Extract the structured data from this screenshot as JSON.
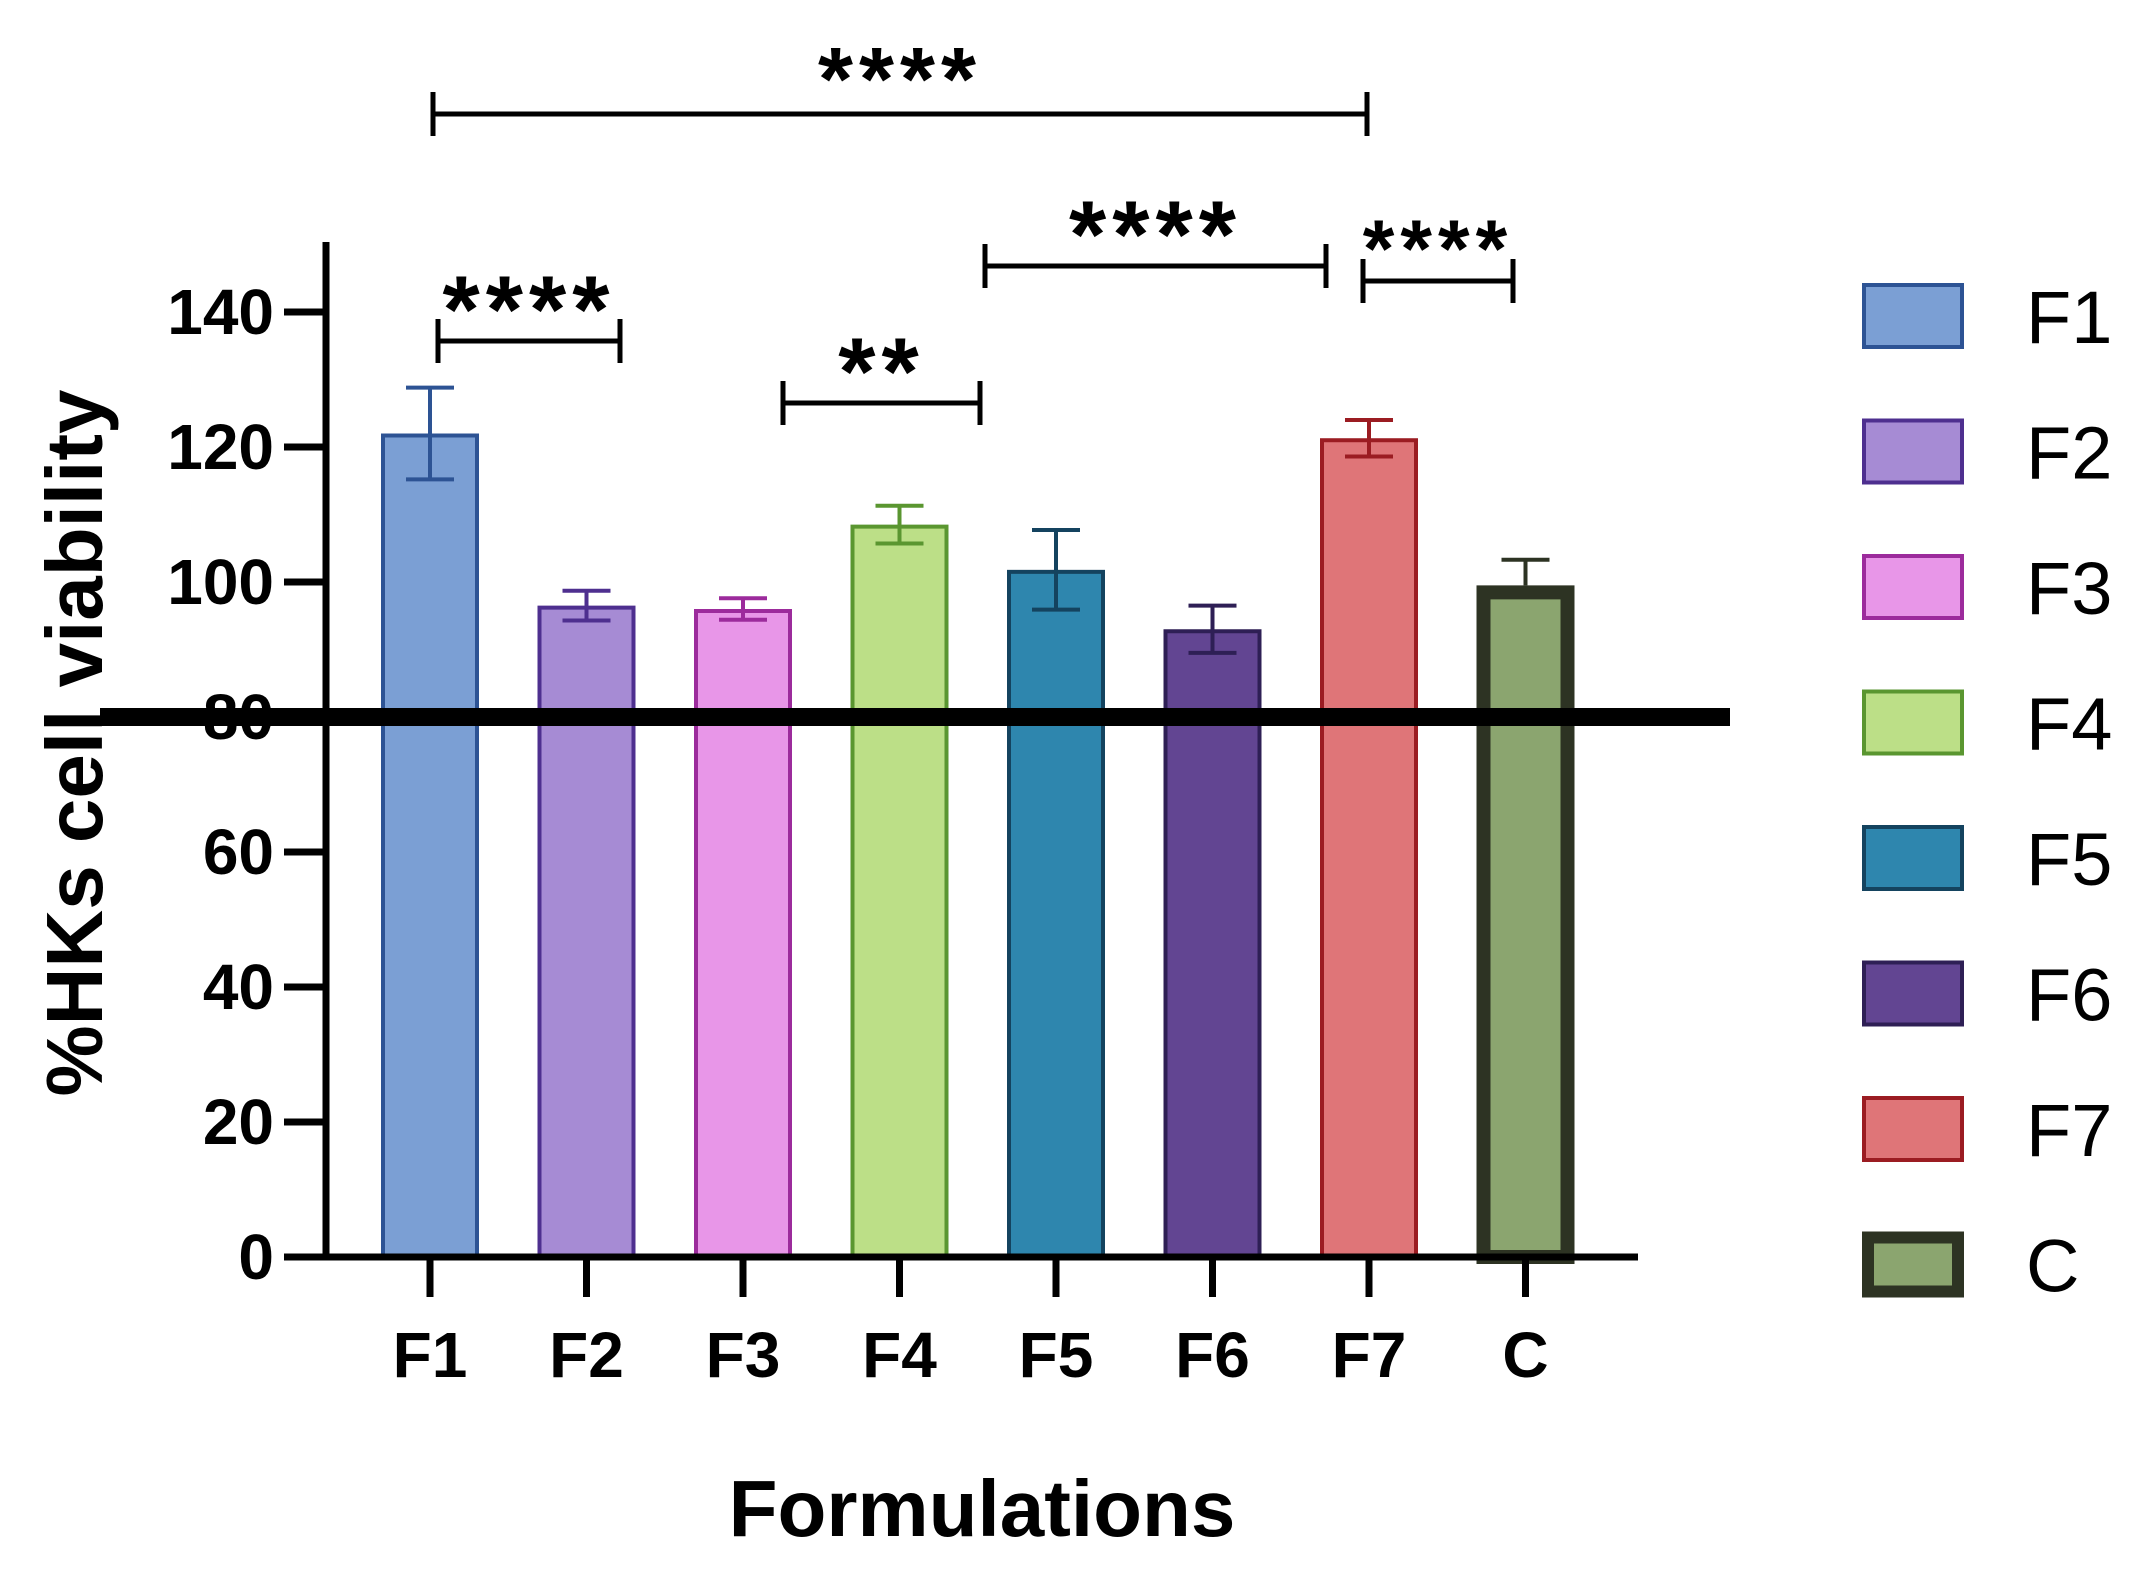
{
  "chart_data": {
    "type": "bar",
    "title": "",
    "xlabel": "Formulations",
    "ylabel": "%HKs cell viability",
    "ylim": [
      0,
      150
    ],
    "yticks": [
      "0",
      "20",
      "40",
      "60",
      "80",
      "100",
      "120",
      "140"
    ],
    "categories": [
      "F1",
      "F2",
      "F3",
      "F4",
      "F5",
      "F6",
      "F7",
      "C"
    ],
    "values": [
      122,
      96.5,
      96,
      108.5,
      101.8,
      93,
      121.3,
      99.5
    ],
    "errors": [
      6.8,
      2.2,
      1.6,
      2.8,
      5.9,
      3.5,
      2.7,
      3.8
    ],
    "fill_colors": [
      "#7b9fd4",
      "#a68bd4",
      "#e896e8",
      "#bcdf87",
      "#2e86ae",
      "#624592",
      "#df7578",
      "#8ba56f"
    ],
    "stroke_colors": [
      "#2d5394",
      "#4e2f8f",
      "#9c2b9c",
      "#5a9630",
      "#14435f",
      "#2e1f55",
      "#9b1c22",
      "#2d3323"
    ],
    "threshold_line": 80,
    "legend_position": "right",
    "legend": [
      "F1",
      "F2",
      "F3",
      "F4",
      "F5",
      "F6",
      "F7",
      "C"
    ],
    "significance": [
      {
        "from": "F1",
        "to": "F7",
        "label": "****"
      },
      {
        "from": "F1",
        "to": "F2",
        "label": "****"
      },
      {
        "from": "F3",
        "to": "F4",
        "label": "**"
      },
      {
        "from": "F5",
        "to": "F7",
        "label": "****"
      },
      {
        "from": "F7",
        "to": "C",
        "label": "****"
      }
    ]
  }
}
